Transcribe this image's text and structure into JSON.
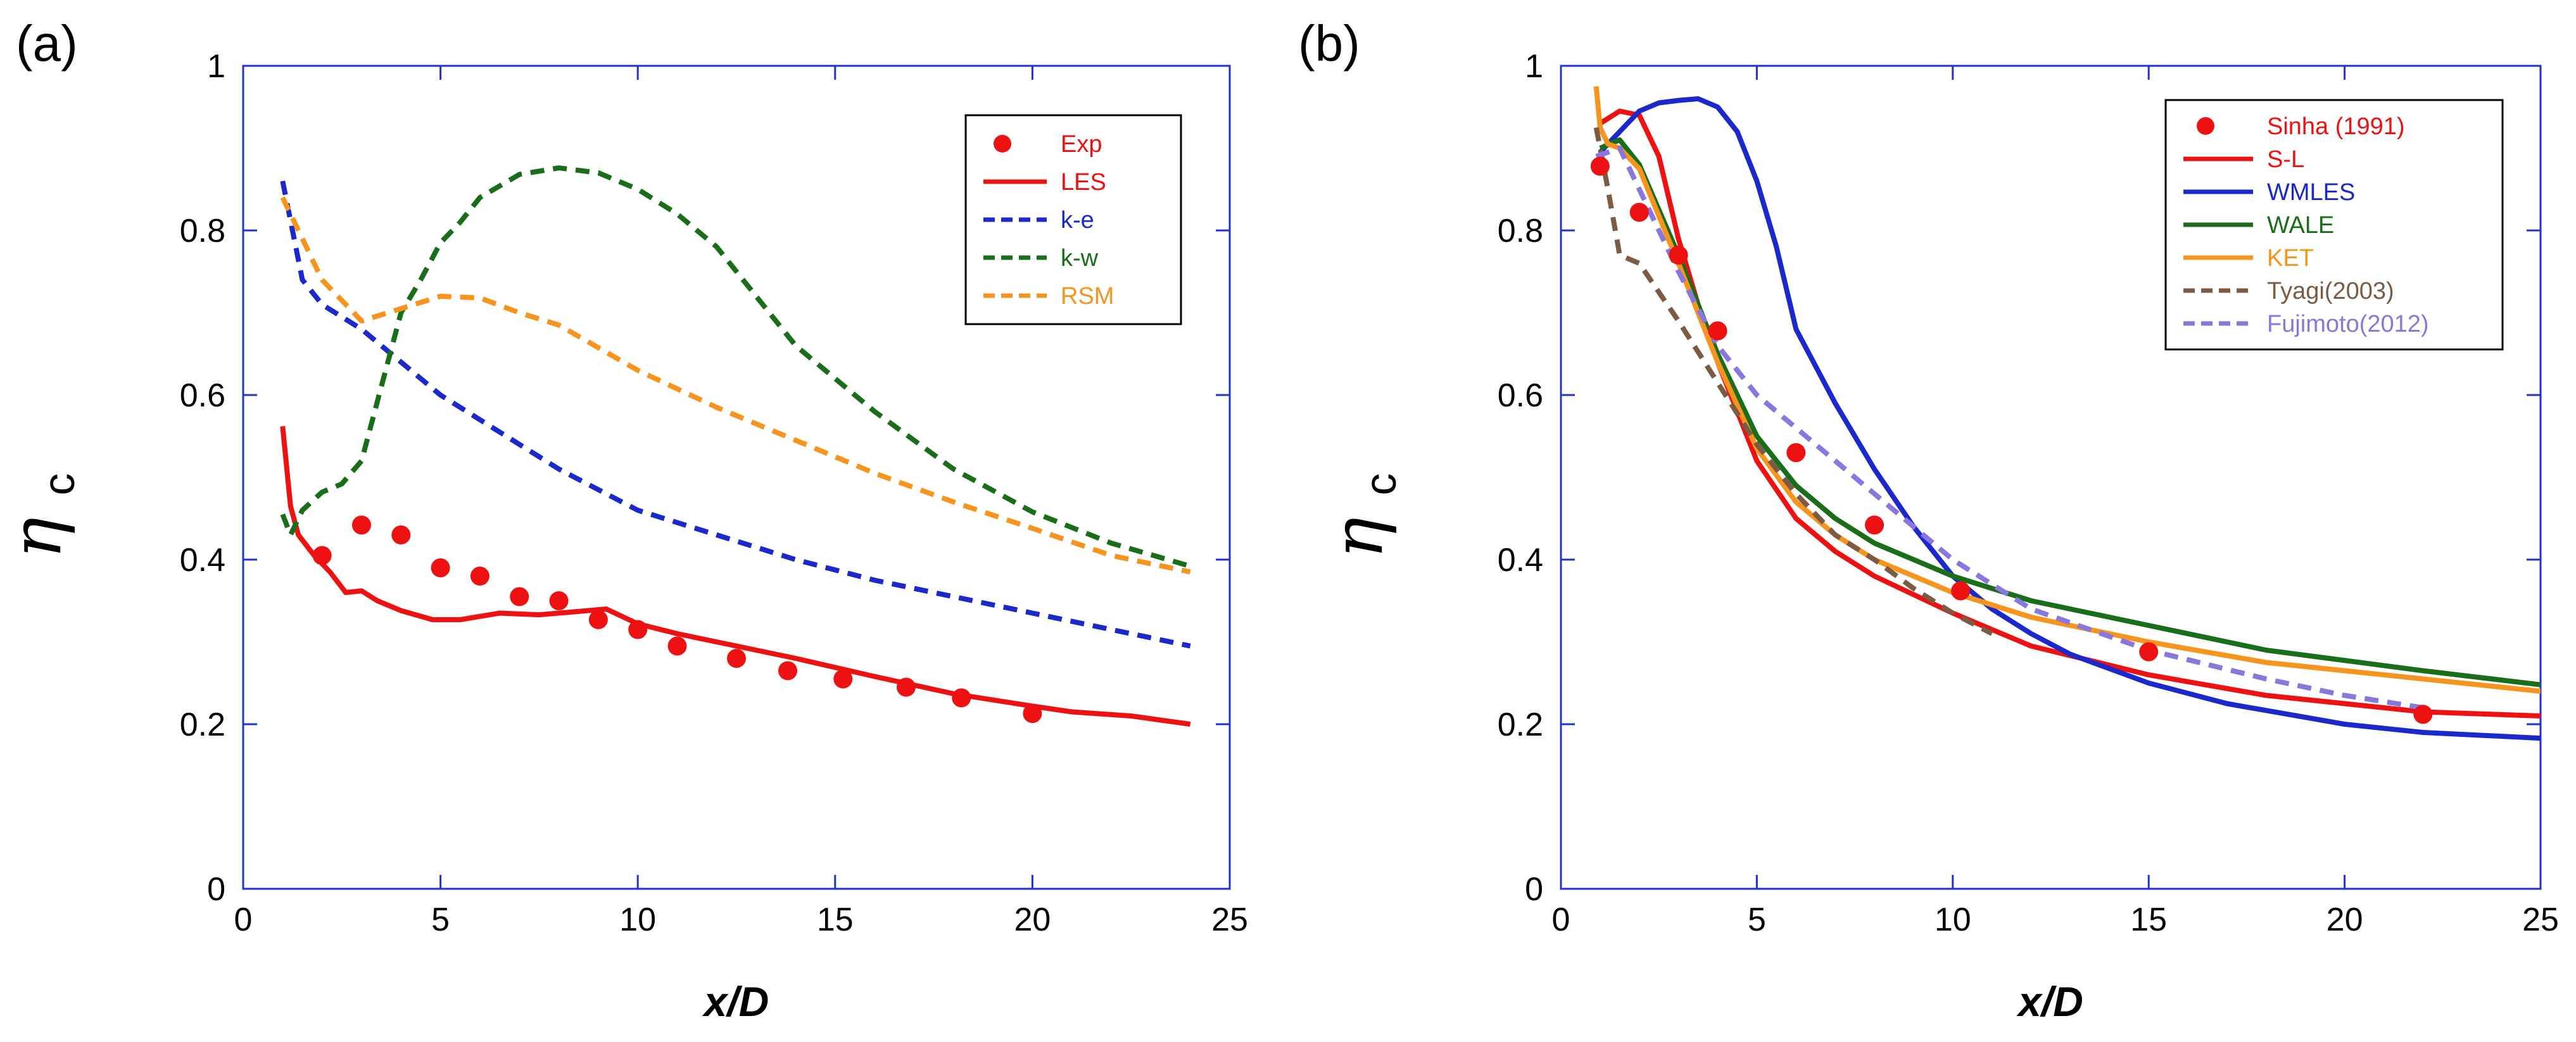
{
  "chart_data": [
    {
      "type": "line",
      "panel_label": "(a)",
      "xlabel": "x/D",
      "ylabel": "η",
      "ylabel_sub": "c",
      "xlim": [
        0,
        25
      ],
      "ylim": [
        0,
        1
      ],
      "xticks": [
        "0",
        "5",
        "10",
        "15",
        "20",
        "25"
      ],
      "yticks": [
        "0",
        "0.2",
        "0.4",
        "0.6",
        "0.8",
        "1"
      ],
      "legend_position": "top-right",
      "series": [
        {
          "name": "Exp",
          "style": "markers",
          "color": "#ee1111",
          "x": [
            2,
            3,
            4,
            5,
            6,
            7,
            8,
            9,
            10,
            11,
            12.5,
            13.8,
            15.2,
            16.8,
            18.2,
            20
          ],
          "y": [
            0.405,
            0.442,
            0.43,
            0.39,
            0.38,
            0.355,
            0.35,
            0.327,
            0.315,
            0.295,
            0.28,
            0.265,
            0.255,
            0.245,
            0.232,
            0.213
          ]
        },
        {
          "name": "LES",
          "style": "solid",
          "color": "#ee1111",
          "x": [
            1,
            1.2,
            1.4,
            1.8,
            2.2,
            2.6,
            3,
            3.4,
            4,
            4.8,
            5.5,
            6.5,
            7.5,
            8.5,
            9.2,
            10,
            11,
            12.5,
            14,
            16,
            18,
            20,
            21,
            22.5,
            24
          ],
          "y": [
            0.562,
            0.465,
            0.43,
            0.405,
            0.385,
            0.36,
            0.362,
            0.35,
            0.338,
            0.327,
            0.327,
            0.335,
            0.333,
            0.337,
            0.34,
            0.322,
            0.31,
            0.295,
            0.28,
            0.258,
            0.237,
            0.222,
            0.215,
            0.21,
            0.2
          ]
        },
        {
          "name": "k-e",
          "style": "dashed",
          "color": "#1a28cc",
          "x": [
            1,
            1.5,
            2,
            3,
            4,
            5,
            6,
            8,
            10,
            12,
            14,
            16,
            18,
            20,
            22,
            24
          ],
          "y": [
            0.86,
            0.74,
            0.71,
            0.68,
            0.64,
            0.6,
            0.57,
            0.51,
            0.46,
            0.43,
            0.4,
            0.375,
            0.355,
            0.335,
            0.315,
            0.295
          ]
        },
        {
          "name": "k-w",
          "style": "dashed",
          "color": "#1a6e1a",
          "x": [
            1,
            1.2,
            1.5,
            2,
            2.5,
            3,
            3.5,
            4,
            4.5,
            5,
            5.5,
            6,
            7,
            8,
            9,
            10,
            11,
            12,
            14,
            16,
            18,
            20,
            22,
            24
          ],
          "y": [
            0.455,
            0.43,
            0.46,
            0.482,
            0.492,
            0.52,
            0.61,
            0.7,
            0.74,
            0.785,
            0.81,
            0.84,
            0.868,
            0.876,
            0.87,
            0.85,
            0.82,
            0.78,
            0.66,
            0.58,
            0.51,
            0.458,
            0.42,
            0.392
          ]
        },
        {
          "name": "RSM",
          "style": "dashed",
          "color": "#f7941d",
          "x": [
            1,
            1.5,
            2,
            3,
            4,
            5,
            6,
            7,
            8,
            10,
            12,
            14,
            16,
            18,
            20,
            22,
            24
          ],
          "y": [
            0.84,
            0.79,
            0.74,
            0.69,
            0.705,
            0.72,
            0.718,
            0.7,
            0.685,
            0.63,
            0.585,
            0.545,
            0.505,
            0.47,
            0.438,
            0.405,
            0.385
          ]
        }
      ]
    },
    {
      "type": "line",
      "panel_label": "(b)",
      "xlabel": "x/D",
      "ylabel": "η",
      "ylabel_sub": "c",
      "xlim": [
        0,
        25
      ],
      "ylim": [
        0,
        1
      ],
      "xticks": [
        "0",
        "5",
        "10",
        "15",
        "20",
        "25"
      ],
      "yticks": [
        "0",
        "0.2",
        "0.4",
        "0.6",
        "0.8",
        "1"
      ],
      "legend_position": "top-right",
      "series": [
        {
          "name": "Sinha (1991)",
          "style": "markers",
          "color": "#ee1111",
          "x": [
            1,
            2,
            3,
            4,
            6,
            8,
            10.2,
            15,
            22
          ],
          "y": [
            0.878,
            0.822,
            0.77,
            0.678,
            0.53,
            0.442,
            0.362,
            0.288,
            0.212
          ]
        },
        {
          "name": "S-L",
          "style": "solid",
          "color": "#ee1111",
          "x": [
            1,
            1.5,
            2,
            2.5,
            3,
            3.5,
            4,
            5,
            6,
            7,
            8,
            10,
            12,
            15,
            18,
            22,
            25
          ],
          "y": [
            0.93,
            0.945,
            0.94,
            0.89,
            0.79,
            0.71,
            0.64,
            0.52,
            0.45,
            0.41,
            0.38,
            0.335,
            0.295,
            0.26,
            0.235,
            0.215,
            0.21
          ]
        },
        {
          "name": "WMLES",
          "style": "solid",
          "color": "#1a28cc",
          "x": [
            1,
            1.5,
            2,
            2.5,
            3,
            3.5,
            4,
            4.5,
            5,
            5.5,
            6,
            7,
            8,
            9,
            10,
            11,
            12,
            13,
            15,
            17,
            20,
            22,
            25
          ],
          "y": [
            0.895,
            0.92,
            0.945,
            0.955,
            0.958,
            0.96,
            0.95,
            0.92,
            0.86,
            0.78,
            0.68,
            0.59,
            0.51,
            0.44,
            0.38,
            0.34,
            0.31,
            0.285,
            0.25,
            0.225,
            0.2,
            0.19,
            0.183
          ]
        },
        {
          "name": "WALE",
          "style": "solid",
          "color": "#1a6e1a",
          "x": [
            1,
            1.5,
            2,
            3,
            4,
            5,
            6,
            7,
            8,
            10,
            12,
            15,
            18,
            22,
            25
          ],
          "y": [
            0.9,
            0.91,
            0.88,
            0.77,
            0.65,
            0.55,
            0.49,
            0.45,
            0.42,
            0.38,
            0.35,
            0.32,
            0.29,
            0.265,
            0.248
          ]
        },
        {
          "name": "KET",
          "style": "solid",
          "color": "#f7941d",
          "x": [
            0.9,
            1,
            1.2,
            1.5,
            2,
            3,
            4,
            5,
            6,
            7,
            8,
            10,
            12,
            15,
            18,
            22,
            25
          ],
          "y": [
            0.975,
            0.925,
            0.905,
            0.9,
            0.875,
            0.76,
            0.64,
            0.535,
            0.47,
            0.43,
            0.4,
            0.36,
            0.33,
            0.3,
            0.275,
            0.255,
            0.24
          ]
        },
        {
          "name": "Tyagi(2003)",
          "style": "dashed",
          "color": "#7b5b44",
          "x": [
            0.9,
            1.2,
            1.5,
            2,
            3,
            4,
            5,
            6,
            7,
            8,
            9,
            10,
            11
          ],
          "y": [
            0.925,
            0.85,
            0.77,
            0.76,
            0.69,
            0.615,
            0.54,
            0.48,
            0.43,
            0.4,
            0.365,
            0.335,
            0.31
          ]
        },
        {
          "name": "Fujimoto(2012)",
          "style": "dashed",
          "color": "#8877dd",
          "x": [
            0.9,
            1.5,
            2,
            3,
            4,
            5,
            6,
            7,
            8,
            9,
            10,
            12,
            15,
            18,
            20,
            22
          ],
          "y": [
            0.89,
            0.9,
            0.85,
            0.75,
            0.66,
            0.6,
            0.56,
            0.52,
            0.48,
            0.44,
            0.4,
            0.34,
            0.29,
            0.255,
            0.235,
            0.22
          ]
        }
      ]
    }
  ]
}
